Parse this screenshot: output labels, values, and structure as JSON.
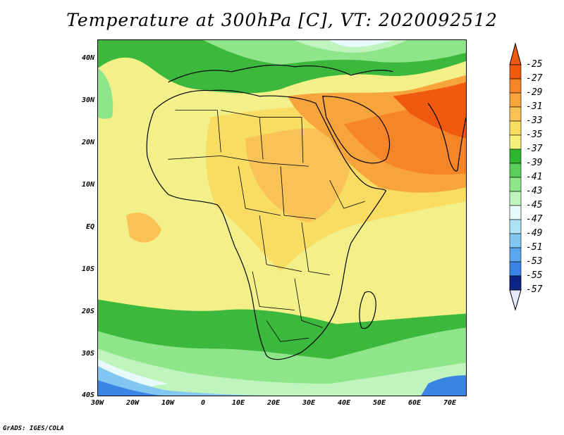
{
  "title": "Temperature at 300hPa [C], VT: 2020092512",
  "credit": "GrADS: IGES/COLA",
  "axes": {
    "lat_labels": [
      "40N",
      "30N",
      "20N",
      "10N",
      "EQ",
      "10S",
      "20S",
      "30S",
      "40S"
    ],
    "lon_labels": [
      "30W",
      "20W",
      "10W",
      "0",
      "10E",
      "20E",
      "30E",
      "40E",
      "50E",
      "60E",
      "70E"
    ]
  },
  "colorbar": {
    "labels": [
      "-25",
      "-27",
      "-29",
      "-31",
      "-33",
      "-35",
      "-37",
      "-39",
      "-41",
      "-43",
      "-45",
      "-47",
      "-49",
      "-51",
      "-53",
      "-55",
      "-57"
    ],
    "colors": [
      "#f5f07a",
      "#f9dc62",
      "#f9c257",
      "#f7a43c",
      "#f6852a",
      "#ef5a10",
      "#2fb52f",
      "#5acd5a",
      "#8ee58a",
      "#bff5bd",
      "#e8fbfc",
      "#aee2f5",
      "#82c6f2",
      "#5aa6ee",
      "#3a84e4",
      "#1f62d4",
      "#1442b0",
      "#0c2484"
    ]
  },
  "map_colors": {
    "base": "#f3f08a",
    "warm1": "#f9dc62",
    "warm2": "#f9c257",
    "warm3": "#f7a43c",
    "hot": "#ef5a10",
    "green": "#3cb83c",
    "lightgreen": "#8ee58a",
    "palegreen": "#bff5bd",
    "cyan": "#e8fbfc",
    "blue1": "#82c6f2",
    "blue2": "#3a84e4"
  }
}
